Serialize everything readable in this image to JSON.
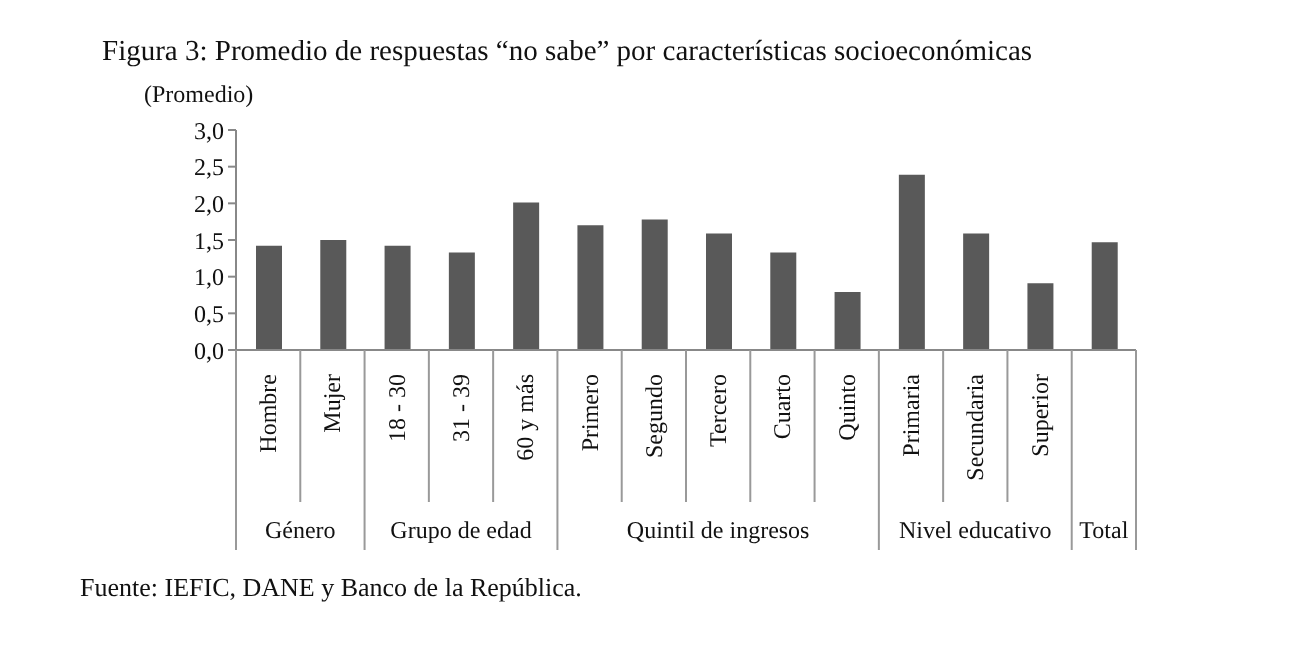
{
  "chart_data": {
    "type": "bar",
    "title": "Figura 3: Promedio de respuestas “no sabe” por características socioeconómicas",
    "ylabel": "(Promedio)",
    "categories": [
      "Hombre",
      "Mujer",
      "18 - 30",
      "31 - 39",
      "60 y más",
      "Primero",
      "Segundo",
      "Tercero",
      "Cuarto",
      "Quinto",
      "Primaria",
      "Secundaria",
      "Superior",
      null
    ],
    "values": [
      1.42,
      1.5,
      1.42,
      1.33,
      2.01,
      1.7,
      1.78,
      1.59,
      1.33,
      0.79,
      2.39,
      1.59,
      0.91,
      1.47
    ],
    "color": "#595959",
    "ylim": [
      0,
      3
    ],
    "yticks": [
      {
        "value": 0,
        "label": "0,0"
      },
      {
        "value": 0.5,
        "label": "0,5"
      },
      {
        "value": 1,
        "label": "1,0"
      },
      {
        "value": 1.5,
        "label": "1,5"
      },
      {
        "value": 2,
        "label": "2,0"
      },
      {
        "value": 2.5,
        "label": "2,5"
      },
      {
        "value": 3,
        "label": "3,0"
      }
    ],
    "grid": false,
    "legend": false,
    "annotations": [
      "Género",
      "Grupo de edad",
      "Quintil de ingresos",
      "Nivel educativo",
      "Total",
      "Fuente: IEFIC, DANE y Banco de la República."
    ]
  }
}
